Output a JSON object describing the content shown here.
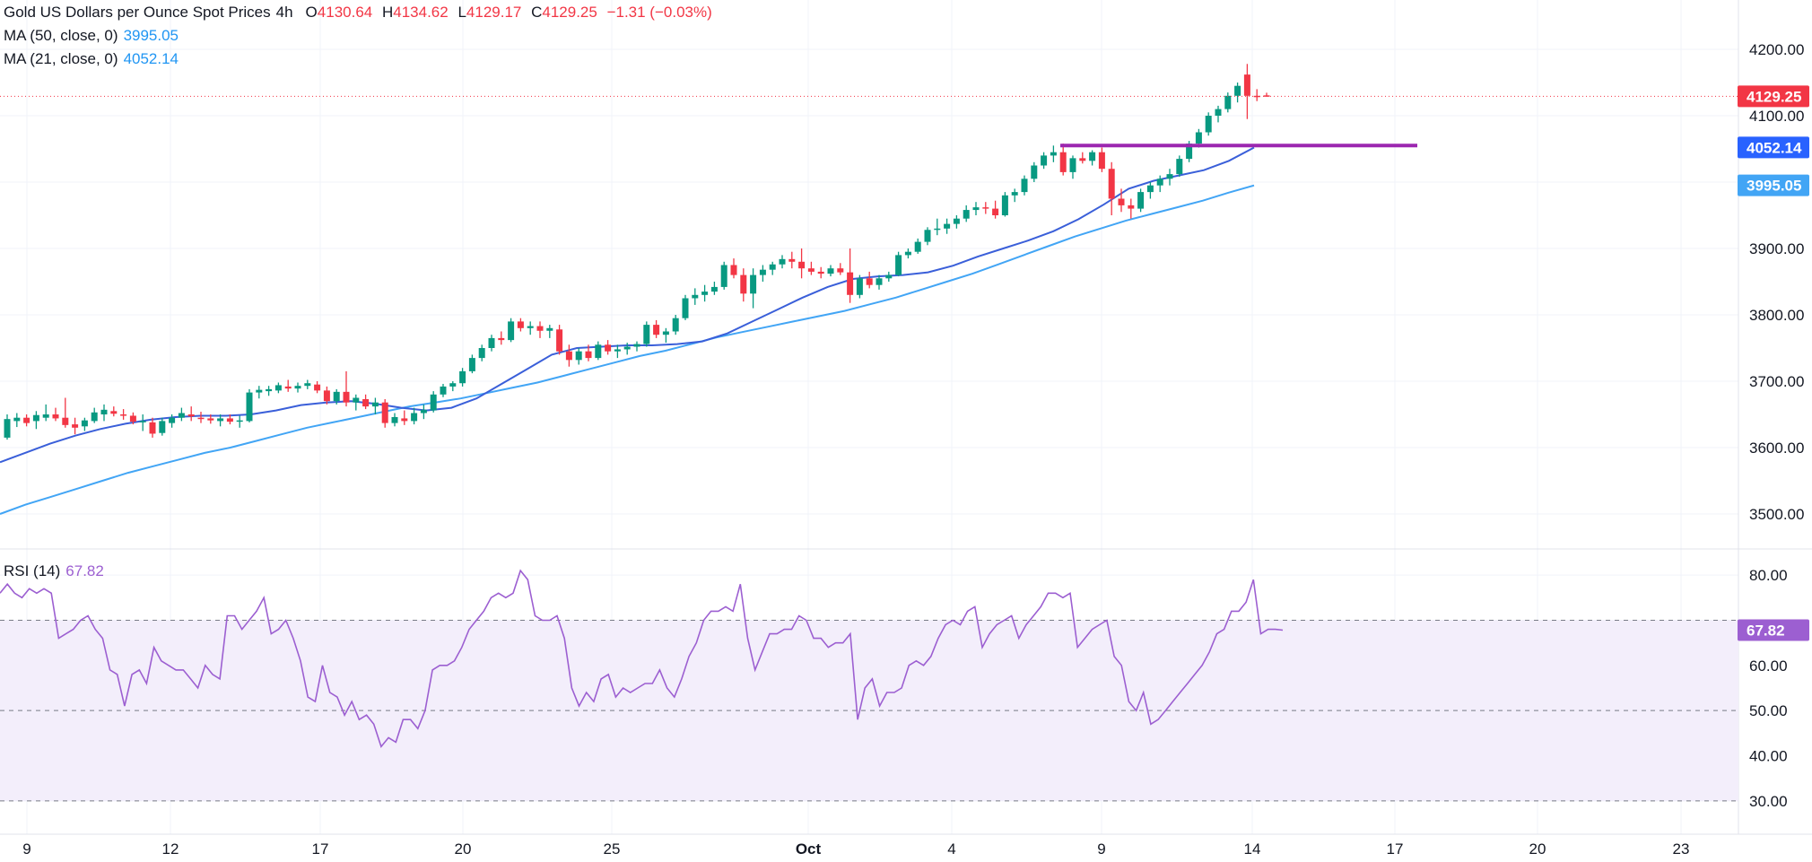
{
  "header": {
    "symbol": "Gold US Dollars per Ounce Spot Prices",
    "timeframe": "4h",
    "o_label": "O",
    "open": "4130.64",
    "h_label": "H",
    "high": "4134.62",
    "l_label": "L",
    "low": "4129.17",
    "c_label": "C",
    "close": "4129.25",
    "change": "−1.31 (−0.03%)"
  },
  "indicators": {
    "ma50": {
      "label": "MA (50, close, 0)",
      "value": "3995.05",
      "color": "#42a5f5"
    },
    "ma21": {
      "label": "MA (21, close, 0)",
      "value": "4052.14",
      "color": "#3a5fd9"
    },
    "rsi": {
      "label": "RSI (14)",
      "value": "67.82",
      "color": "#9c5fd1"
    }
  },
  "colors": {
    "up": "#089981",
    "down": "#f23645",
    "resistance": "#9c27b0",
    "rsi_band": "#f3eefb"
  },
  "chart_data": [
    {
      "type": "candlestick",
      "ylim": [
        3450,
        4250
      ],
      "yticks": [
        3500,
        3600,
        3700,
        3800,
        3900,
        4000,
        4100,
        4200
      ],
      "ytick_labels": [
        "3500.00",
        "3600.00",
        "3700.00",
        "3800.00",
        "3900.00",
        "",
        "4100.00",
        "4200.00"
      ],
      "xticks": [
        "9",
        "12",
        "17",
        "20",
        "25",
        "Oct",
        "4",
        "9",
        "14",
        "17",
        "20",
        "23"
      ],
      "last_price": 4129.25,
      "last_price_label": "4129.25",
      "ma21_label": "4052.14",
      "ma50_label": "3995.05",
      "resistance_level": 4055,
      "candles": [
        [
          3615,
          3650,
          3612,
          3643
        ],
        [
          3640,
          3652,
          3631,
          3645
        ],
        [
          3645,
          3650,
          3632,
          3637
        ],
        [
          3640,
          3655,
          3628,
          3649
        ],
        [
          3645,
          3665,
          3640,
          3650
        ],
        [
          3650,
          3660,
          3640,
          3644
        ],
        [
          3645,
          3675,
          3630,
          3634
        ],
        [
          3635,
          3645,
          3620,
          3630
        ],
        [
          3632,
          3645,
          3625,
          3641
        ],
        [
          3640,
          3660,
          3637,
          3653
        ],
        [
          3650,
          3665,
          3640,
          3657
        ],
        [
          3655,
          3662,
          3647,
          3651
        ],
        [
          3650,
          3658,
          3642,
          3648
        ],
        [
          3648,
          3653,
          3635,
          3639
        ],
        [
          3640,
          3650,
          3625,
          3640
        ],
        [
          3638,
          3645,
          3615,
          3621
        ],
        [
          3622,
          3645,
          3618,
          3640
        ],
        [
          3637,
          3650,
          3630,
          3645
        ],
        [
          3645,
          3660,
          3640,
          3652
        ],
        [
          3650,
          3662,
          3640,
          3647
        ],
        [
          3645,
          3654,
          3637,
          3644
        ],
        [
          3644,
          3650,
          3636,
          3641
        ],
        [
          3640,
          3650,
          3632,
          3644
        ],
        [
          3644,
          3650,
          3635,
          3639
        ],
        [
          3640,
          3648,
          3630,
          3641
        ],
        [
          3640,
          3688,
          3638,
          3683
        ],
        [
          3683,
          3693,
          3674,
          3687
        ],
        [
          3685,
          3693,
          3678,
          3688
        ],
        [
          3686,
          3698,
          3682,
          3694
        ],
        [
          3692,
          3702,
          3684,
          3689
        ],
        [
          3689,
          3698,
          3683,
          3693
        ],
        [
          3693,
          3702,
          3688,
          3697
        ],
        [
          3695,
          3700,
          3682,
          3686
        ],
        [
          3686,
          3692,
          3665,
          3670
        ],
        [
          3670,
          3688,
          3665,
          3684
        ],
        [
          3684,
          3715,
          3662,
          3668
        ],
        [
          3668,
          3680,
          3656,
          3675
        ],
        [
          3673,
          3680,
          3658,
          3662
        ],
        [
          3662,
          3675,
          3650,
          3668
        ],
        [
          3668,
          3673,
          3630,
          3637
        ],
        [
          3637,
          3652,
          3632,
          3646
        ],
        [
          3644,
          3656,
          3634,
          3640
        ],
        [
          3640,
          3660,
          3635,
          3652
        ],
        [
          3652,
          3665,
          3643,
          3657
        ],
        [
          3656,
          3685,
          3653,
          3680
        ],
        [
          3680,
          3696,
          3676,
          3692
        ],
        [
          3692,
          3700,
          3685,
          3697
        ],
        [
          3697,
          3720,
          3692,
          3715
        ],
        [
          3715,
          3740,
          3712,
          3735
        ],
        [
          3735,
          3755,
          3730,
          3750
        ],
        [
          3750,
          3770,
          3745,
          3765
        ],
        [
          3765,
          3775,
          3755,
          3762
        ],
        [
          3762,
          3795,
          3759,
          3790
        ],
        [
          3790,
          3795,
          3775,
          3780
        ],
        [
          3780,
          3790,
          3770,
          3783
        ],
        [
          3783,
          3790,
          3765,
          3776
        ],
        [
          3776,
          3785,
          3765,
          3780
        ],
        [
          3778,
          3785,
          3740,
          3745
        ],
        [
          3745,
          3755,
          3722,
          3732
        ],
        [
          3732,
          3750,
          3725,
          3745
        ],
        [
          3745,
          3755,
          3730,
          3735
        ],
        [
          3735,
          3760,
          3732,
          3755
        ],
        [
          3755,
          3762,
          3740,
          3745
        ],
        [
          3745,
          3755,
          3735,
          3748
        ],
        [
          3748,
          3758,
          3740,
          3752
        ],
        [
          3752,
          3760,
          3745,
          3756
        ],
        [
          3756,
          3790,
          3752,
          3785
        ],
        [
          3785,
          3792,
          3765,
          3770
        ],
        [
          3770,
          3780,
          3758,
          3775
        ],
        [
          3775,
          3800,
          3770,
          3795
        ],
        [
          3795,
          3830,
          3792,
          3825
        ],
        [
          3825,
          3840,
          3815,
          3830
        ],
        [
          3830,
          3845,
          3820,
          3835
        ],
        [
          3835,
          3850,
          3830,
          3842
        ],
        [
          3842,
          3880,
          3838,
          3875
        ],
        [
          3875,
          3885,
          3855,
          3860
        ],
        [
          3860,
          3870,
          3820,
          3832
        ],
        [
          3832,
          3870,
          3810,
          3860
        ],
        [
          3860,
          3875,
          3850,
          3868
        ],
        [
          3868,
          3880,
          3860,
          3876
        ],
        [
          3876,
          3890,
          3870,
          3884
        ],
        [
          3884,
          3895,
          3870,
          3880
        ],
        [
          3880,
          3900,
          3855,
          3870
        ],
        [
          3870,
          3880,
          3860,
          3865
        ],
        [
          3865,
          3872,
          3855,
          3862
        ],
        [
          3862,
          3875,
          3858,
          3870
        ],
        [
          3870,
          3878,
          3860,
          3864
        ],
        [
          3864,
          3900,
          3818,
          3830
        ],
        [
          3830,
          3860,
          3825,
          3855
        ],
        [
          3855,
          3865,
          3840,
          3845
        ],
        [
          3845,
          3860,
          3838,
          3855
        ],
        [
          3855,
          3865,
          3850,
          3860
        ],
        [
          3860,
          3895,
          3858,
          3890
        ],
        [
          3890,
          3900,
          3885,
          3895
        ],
        [
          3895,
          3915,
          3892,
          3910
        ],
        [
          3910,
          3932,
          3905,
          3928
        ],
        [
          3928,
          3945,
          3920,
          3930
        ],
        [
          3930,
          3945,
          3922,
          3937
        ],
        [
          3937,
          3950,
          3930,
          3945
        ],
        [
          3945,
          3965,
          3940,
          3958
        ],
        [
          3958,
          3970,
          3950,
          3962
        ],
        [
          3962,
          3970,
          3952,
          3960
        ],
        [
          3960,
          3972,
          3945,
          3950
        ],
        [
          3950,
          3985,
          3948,
          3980
        ],
        [
          3980,
          3990,
          3970,
          3985
        ],
        [
          3985,
          4010,
          3980,
          4005
        ],
        [
          4005,
          4030,
          4000,
          4025
        ],
        [
          4025,
          4045,
          4020,
          4040
        ],
        [
          4040,
          4055,
          4030,
          4045
        ],
        [
          4045,
          4058,
          4010,
          4015
        ],
        [
          4015,
          4040,
          4005,
          4036
        ],
        [
          4036,
          4045,
          4028,
          4032
        ],
        [
          4032,
          4048,
          4025,
          4045
        ],
        [
          4045,
          4052,
          4015,
          4020
        ],
        [
          4020,
          4030,
          3950,
          3975
        ],
        [
          3975,
          3990,
          3955,
          3965
        ],
        [
          3965,
          3975,
          3945,
          3960
        ],
        [
          3960,
          3990,
          3955,
          3985
        ],
        [
          3985,
          4000,
          3975,
          3995
        ],
        [
          3995,
          4010,
          3985,
          4005
        ],
        [
          4005,
          4020,
          3995,
          4012
        ],
        [
          4012,
          4040,
          4008,
          4035
        ],
        [
          4035,
          4062,
          4030,
          4058
        ],
        [
          4058,
          4080,
          4052,
          4075
        ],
        [
          4075,
          4105,
          4070,
          4100
        ],
        [
          4100,
          4115,
          4090,
          4110
        ],
        [
          4110,
          4135,
          4105,
          4130
        ],
        [
          4130,
          4150,
          4120,
          4145
        ],
        [
          4162,
          4178,
          4095,
          4130
        ],
        [
          4130,
          4140,
          4122,
          4128
        ],
        [
          4130.64,
          4134.62,
          4129.17,
          4129.25
        ]
      ],
      "ma21": [
        3578,
        3592,
        3606,
        3618,
        3628,
        3636,
        3642,
        3646,
        3648,
        3648,
        3650,
        3656,
        3664,
        3668,
        3670,
        3666,
        3660,
        3656,
        3660,
        3674,
        3696,
        3718,
        3740,
        3750,
        3752,
        3754,
        3754,
        3756,
        3760,
        3772,
        3790,
        3808,
        3826,
        3842,
        3854,
        3858,
        3860,
        3864,
        3874,
        3888,
        3900,
        3912,
        3926,
        3944,
        3966,
        3990,
        4002,
        4010,
        4018,
        4032,
        4052
      ],
      "ma50": [
        3500,
        3514,
        3526,
        3538,
        3550,
        3562,
        3572,
        3582,
        3592,
        3600,
        3610,
        3620,
        3630,
        3638,
        3646,
        3654,
        3662,
        3668,
        3674,
        3682,
        3690,
        3698,
        3708,
        3718,
        3728,
        3738,
        3746,
        3756,
        3766,
        3774,
        3782,
        3790,
        3798,
        3806,
        3816,
        3826,
        3838,
        3850,
        3862,
        3876,
        3890,
        3904,
        3918,
        3930,
        3942,
        3952,
        3962,
        3972,
        3984,
        3995
      ]
    },
    {
      "type": "line",
      "name": "RSI (14)",
      "ylim": [
        25,
        85
      ],
      "yticks": [
        30,
        40,
        50,
        60,
        70,
        80
      ],
      "ytick_labels": [
        "30.00",
        "40.00",
        "50.00",
        "60.00",
        "",
        "80.00"
      ],
      "band": [
        30,
        70
      ],
      "last_value_label": "67.82",
      "values": [
        76,
        78,
        76,
        75,
        77,
        76,
        77,
        76,
        66,
        67,
        68,
        70,
        71,
        68,
        66,
        59,
        58,
        51,
        58,
        59,
        56,
        64,
        61,
        60,
        59,
        59,
        57,
        55,
        60,
        58,
        57,
        71,
        71,
        68,
        70,
        72,
        75,
        67,
        68,
        70,
        66,
        61,
        53,
        52,
        60,
        54,
        53,
        49,
        52,
        48,
        49,
        47,
        42,
        44,
        43,
        48,
        48,
        46,
        50,
        59,
        60,
        60,
        61,
        64,
        68,
        70,
        72,
        75,
        76,
        75,
        76,
        81,
        79,
        71,
        70,
        70,
        71,
        66,
        55,
        51,
        54,
        52,
        57,
        58,
        53,
        55,
        54,
        55,
        56,
        56,
        59,
        55,
        53,
        57,
        62,
        65,
        70,
        72,
        72,
        73,
        72,
        78,
        66,
        59,
        63,
        67,
        67,
        68,
        68,
        71,
        70,
        66,
        66,
        64,
        65,
        65,
        67,
        48,
        55,
        57,
        51,
        54,
        54,
        55,
        60,
        61,
        60,
        62,
        66,
        69,
        70,
        69,
        72,
        73,
        64,
        67,
        69,
        70,
        71,
        66,
        69,
        71,
        73,
        76,
        76,
        75,
        76,
        64,
        66,
        68,
        69,
        70,
        62,
        60,
        52,
        50,
        54,
        47,
        48,
        50,
        52,
        54,
        56,
        58,
        60,
        63,
        67,
        68,
        72,
        72,
        74,
        79,
        67,
        68,
        68,
        67.82
      ]
    }
  ]
}
